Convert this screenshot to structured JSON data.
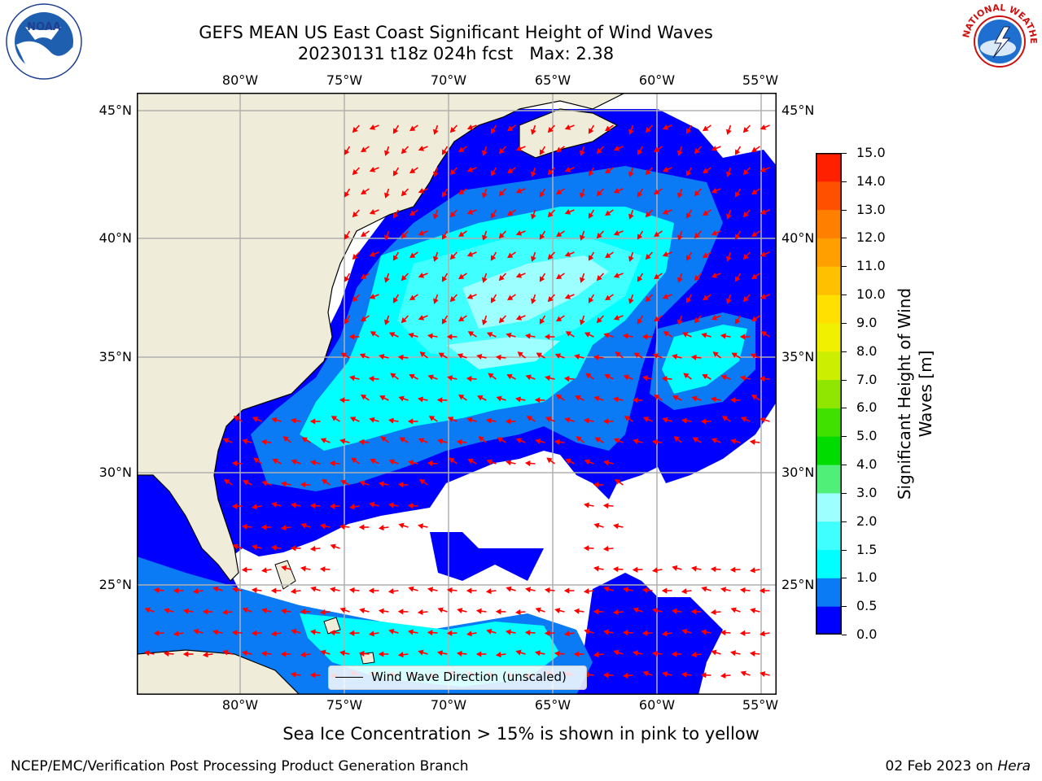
{
  "title": {
    "line1": "GEFS MEAN US East Coast Significant Height of Wind Waves",
    "line2": "20230131 t18z 024h fcst   Max: 2.38"
  },
  "map": {
    "lon_labels": [
      "80°W",
      "75°W",
      "70°W",
      "65°W",
      "60°W",
      "55°W"
    ],
    "lat_labels": [
      "45°N",
      "40°N",
      "35°N",
      "30°N",
      "25°N"
    ],
    "legend_label": "Wind Wave Direction (unscaled)",
    "colors": {
      "land": "#efedda",
      "ocean_missing": "#ffffff",
      "gridline": "#b0b0b0",
      "coastline": "#000000",
      "arrow": "#ff0000"
    }
  },
  "colorbar": {
    "label": "Significant Height of Wind Waves [m]",
    "ticks": [
      "0.0",
      "0.5",
      "1.0",
      "1.5",
      "2.0",
      "3.0",
      "4.0",
      "5.0",
      "6.0",
      "7.0",
      "8.0",
      "9.0",
      "10.0",
      "11.0",
      "12.0",
      "13.0",
      "14.0",
      "15.0"
    ],
    "colors": [
      "#0000ff",
      "#0a7af5",
      "#00ffff",
      "#40ffff",
      "#9dffff",
      "#50ef78",
      "#00dc00",
      "#40e000",
      "#90e600",
      "#ccee00",
      "#f0f000",
      "#ffe000",
      "#ffc000",
      "#ffa000",
      "#ff8000",
      "#ff5000",
      "#ff2000"
    ]
  },
  "caption": "Sea Ice Concentration > 15% is shown in pink to yellow",
  "footer": {
    "credit": "NCEP/EMC/Verification Post Processing Product Generation Branch",
    "date_prefix": "02 Feb 2023 on ",
    "host": "Hera"
  },
  "logos": {
    "noaa_text": "NOAA",
    "nws_text": "NATIONAL WEATHER SERVICE"
  }
}
